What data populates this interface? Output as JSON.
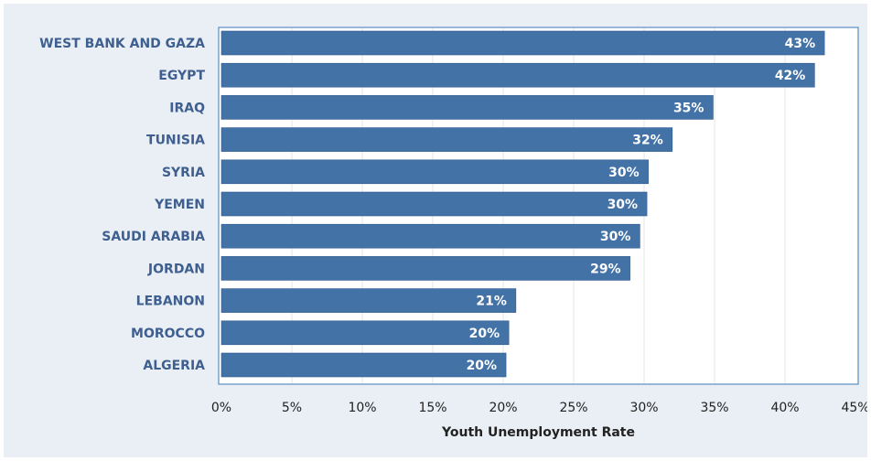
{
  "chart_data": {
    "type": "bar",
    "orientation": "horizontal",
    "categories": [
      "WEST BANK AND GAZA",
      "EGYPT",
      "IRAQ",
      "TUNISIA",
      "SYRIA",
      "YEMEN",
      "SAUDI ARABIA",
      "JORDAN",
      "LEBANON",
      "MOROCCO",
      "ALGERIA"
    ],
    "values": [
      43,
      42,
      35,
      32,
      30,
      30,
      30,
      29,
      21,
      20,
      20
    ],
    "value_labels": [
      "43%",
      "42%",
      "35%",
      "32%",
      "30%",
      "30%",
      "30%",
      "29%",
      "21%",
      "20%",
      "20%"
    ],
    "bar_lengths": [
      42.8,
      42.1,
      34.9,
      32.0,
      30.3,
      30.2,
      29.7,
      29.0,
      20.9,
      20.4,
      20.2
    ],
    "xlabel": "Youth Unemployment Rate",
    "ylabel": "",
    "xlim": [
      0,
      45
    ],
    "xticks": [
      "0%",
      "5%",
      "10%",
      "15%",
      "20%",
      "25%",
      "30%",
      "35%",
      "40%",
      "45%"
    ],
    "grid": true,
    "colors": {
      "bar": "#4372a7",
      "bar_stroke": "#2f5a8a",
      "category_text": "#3e5f8f",
      "plot_background": "#ffffff",
      "panel_background": "#e9eff5",
      "plot_border": "#5b8cc2",
      "grid": "#e4e4e4"
    }
  }
}
